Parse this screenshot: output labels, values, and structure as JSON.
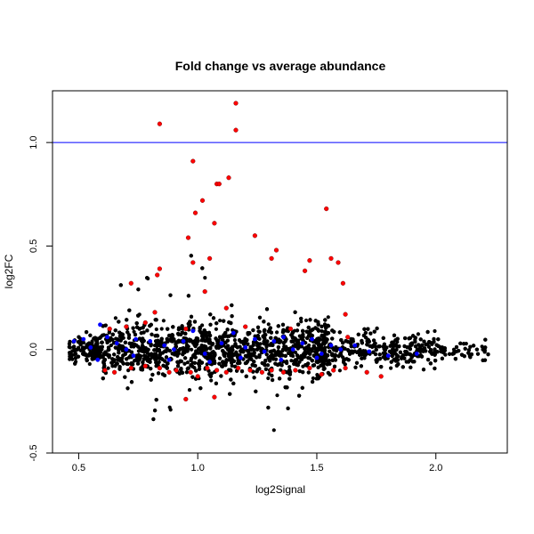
{
  "chart_data": {
    "type": "scatter",
    "title": "Fold change vs average abundance",
    "xlabel": "log2Signal",
    "ylabel": "log2FC",
    "xlim": [
      0.39,
      2.3
    ],
    "ylim": [
      -0.5,
      1.25
    ],
    "xticks": [
      {
        "value": 0.5,
        "label": "0.5"
      },
      {
        "value": 1.0,
        "label": "1.0"
      },
      {
        "value": 1.5,
        "label": "1.5"
      },
      {
        "value": 2.0,
        "label": "2.0"
      }
    ],
    "yticks": [
      {
        "value": -0.5,
        "label": "-0.5"
      },
      {
        "value": 0.0,
        "label": "0.0"
      },
      {
        "value": 0.5,
        "label": "0.5"
      },
      {
        "value": 1.0,
        "label": "1.0"
      }
    ],
    "grid": false,
    "legend": "none",
    "reference_lines": [
      {
        "axis": "y",
        "value": 1.0,
        "color": "#0000ff"
      }
    ],
    "colors": {
      "background_points": "#000000",
      "highlight_red": "#ff0000",
      "highlight_blue": "#0000ff"
    },
    "red_points": [
      [
        0.84,
        1.09
      ],
      [
        1.16,
        1.19
      ],
      [
        1.16,
        1.06
      ],
      [
        0.98,
        0.91
      ],
      [
        1.13,
        0.83
      ],
      [
        1.08,
        0.8
      ],
      [
        1.09,
        0.8
      ],
      [
        1.02,
        0.72
      ],
      [
        0.99,
        0.66
      ],
      [
        1.07,
        0.61
      ],
      [
        1.54,
        0.68
      ],
      [
        1.24,
        0.55
      ],
      [
        0.96,
        0.54
      ],
      [
        1.33,
        0.48
      ],
      [
        1.31,
        0.44
      ],
      [
        1.05,
        0.44
      ],
      [
        1.47,
        0.43
      ],
      [
        1.56,
        0.44
      ],
      [
        1.59,
        0.42
      ],
      [
        0.98,
        0.42
      ],
      [
        0.84,
        0.39
      ],
      [
        1.45,
        0.38
      ],
      [
        0.83,
        0.36
      ],
      [
        0.72,
        0.32
      ],
      [
        1.61,
        0.32
      ],
      [
        1.03,
        0.28
      ],
      [
        1.62,
        0.17
      ],
      [
        0.82,
        0.18
      ],
      [
        0.78,
        0.13
      ],
      [
        1.12,
        0.2
      ],
      [
        0.63,
        0.1
      ],
      [
        0.7,
        0.11
      ],
      [
        0.95,
        0.1
      ],
      [
        1.2,
        0.11
      ],
      [
        1.39,
        0.1
      ],
      [
        1.63,
        0.06
      ],
      [
        0.61,
        -0.1
      ],
      [
        0.65,
        -0.11
      ],
      [
        0.72,
        -0.09
      ],
      [
        0.78,
        -0.08
      ],
      [
        0.84,
        -0.09
      ],
      [
        0.91,
        -0.1
      ],
      [
        0.97,
        -0.11
      ],
      [
        1.0,
        -0.13
      ],
      [
        1.04,
        -0.09
      ],
      [
        1.08,
        -0.1
      ],
      [
        1.12,
        -0.11
      ],
      [
        1.17,
        -0.09
      ],
      [
        1.22,
        -0.1
      ],
      [
        1.27,
        -0.11
      ],
      [
        1.31,
        -0.1
      ],
      [
        1.36,
        -0.11
      ],
      [
        1.41,
        -0.1
      ],
      [
        1.47,
        -0.09
      ],
      [
        1.52,
        -0.12
      ],
      [
        1.57,
        -0.1
      ],
      [
        1.62,
        -0.09
      ],
      [
        1.71,
        -0.11
      ],
      [
        1.77,
        -0.13
      ],
      [
        1.07,
        -0.23
      ],
      [
        0.95,
        -0.24
      ],
      [
        0.88,
        -0.11
      ]
    ],
    "blue_points": [
      [
        0.48,
        0.04
      ],
      [
        0.52,
        0.05
      ],
      [
        0.55,
        0.01
      ],
      [
        0.59,
        0.12
      ],
      [
        0.62,
        0.06
      ],
      [
        0.66,
        0.03
      ],
      [
        0.7,
        0.0
      ],
      [
        0.74,
        0.05
      ],
      [
        0.8,
        0.04
      ],
      [
        0.86,
        0.02
      ],
      [
        0.9,
        0.0
      ],
      [
        0.94,
        0.04
      ],
      [
        0.98,
        0.09
      ],
      [
        1.03,
        -0.02
      ],
      [
        1.1,
        0.03
      ],
      [
        1.15,
        0.08
      ],
      [
        1.2,
        0.01
      ],
      [
        1.24,
        0.05
      ],
      [
        1.28,
        -0.01
      ],
      [
        1.32,
        0.04
      ],
      [
        1.36,
        0.06
      ],
      [
        1.4,
        0.0
      ],
      [
        1.44,
        0.03
      ],
      [
        1.48,
        0.05
      ],
      [
        1.52,
        -0.02
      ],
      [
        1.56,
        0.02
      ],
      [
        1.6,
        0.0
      ],
      [
        1.66,
        0.02
      ],
      [
        1.72,
        -0.01
      ],
      [
        1.8,
        -0.03
      ],
      [
        1.92,
        -0.02
      ],
      [
        0.58,
        -0.05
      ],
      [
        0.73,
        -0.03
      ],
      [
        0.88,
        -0.05
      ],
      [
        1.05,
        -0.06
      ],
      [
        1.18,
        -0.04
      ],
      [
        1.35,
        -0.05
      ],
      [
        1.5,
        -0.04
      ]
    ]
  }
}
